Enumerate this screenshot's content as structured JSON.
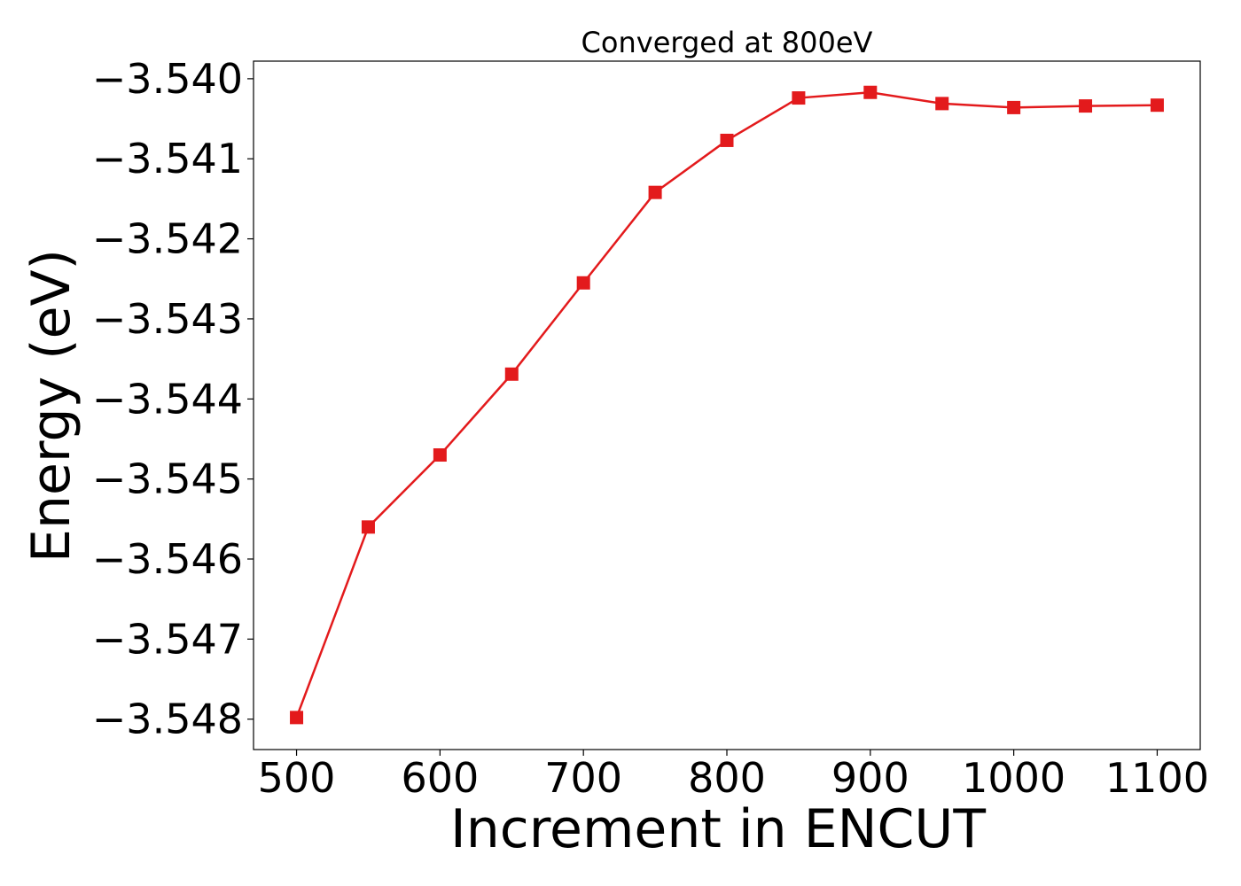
{
  "chart_data": {
    "type": "line",
    "title": "Converged at 800eV",
    "xlabel": "Increment in ENCUT",
    "ylabel": "Energy (eV)",
    "x": [
      500,
      550,
      600,
      650,
      700,
      750,
      800,
      850,
      900,
      950,
      1000,
      1050,
      1100
    ],
    "series": [
      {
        "values": [
          -3.54798,
          -3.5456,
          -3.5447,
          -3.54369,
          -3.54255,
          -3.54142,
          -3.54077,
          -3.54024,
          -3.54017,
          -3.54031,
          -3.54036,
          -3.54034,
          -3.54033
        ],
        "color": "#e31a1c",
        "marker": "square"
      }
    ],
    "xlim": [
      470,
      1130
    ],
    "ylim": [
      -3.54838,
      -3.53978
    ],
    "xticks": [
      500,
      600,
      700,
      800,
      900,
      1000,
      1100
    ],
    "xtick_labels": [
      "500",
      "600",
      "700",
      "800",
      "900",
      "1000",
      "1100"
    ],
    "yticks": [
      -3.54,
      -3.541,
      -3.542,
      -3.543,
      -3.544,
      -3.545,
      -3.546,
      -3.547,
      -3.548
    ],
    "ytick_labels": [
      "−3.540",
      "−3.541",
      "−3.542",
      "−3.543",
      "−3.544",
      "−3.545",
      "−3.546",
      "−3.547",
      "−3.548"
    ],
    "grid": false,
    "legend": "none"
  }
}
